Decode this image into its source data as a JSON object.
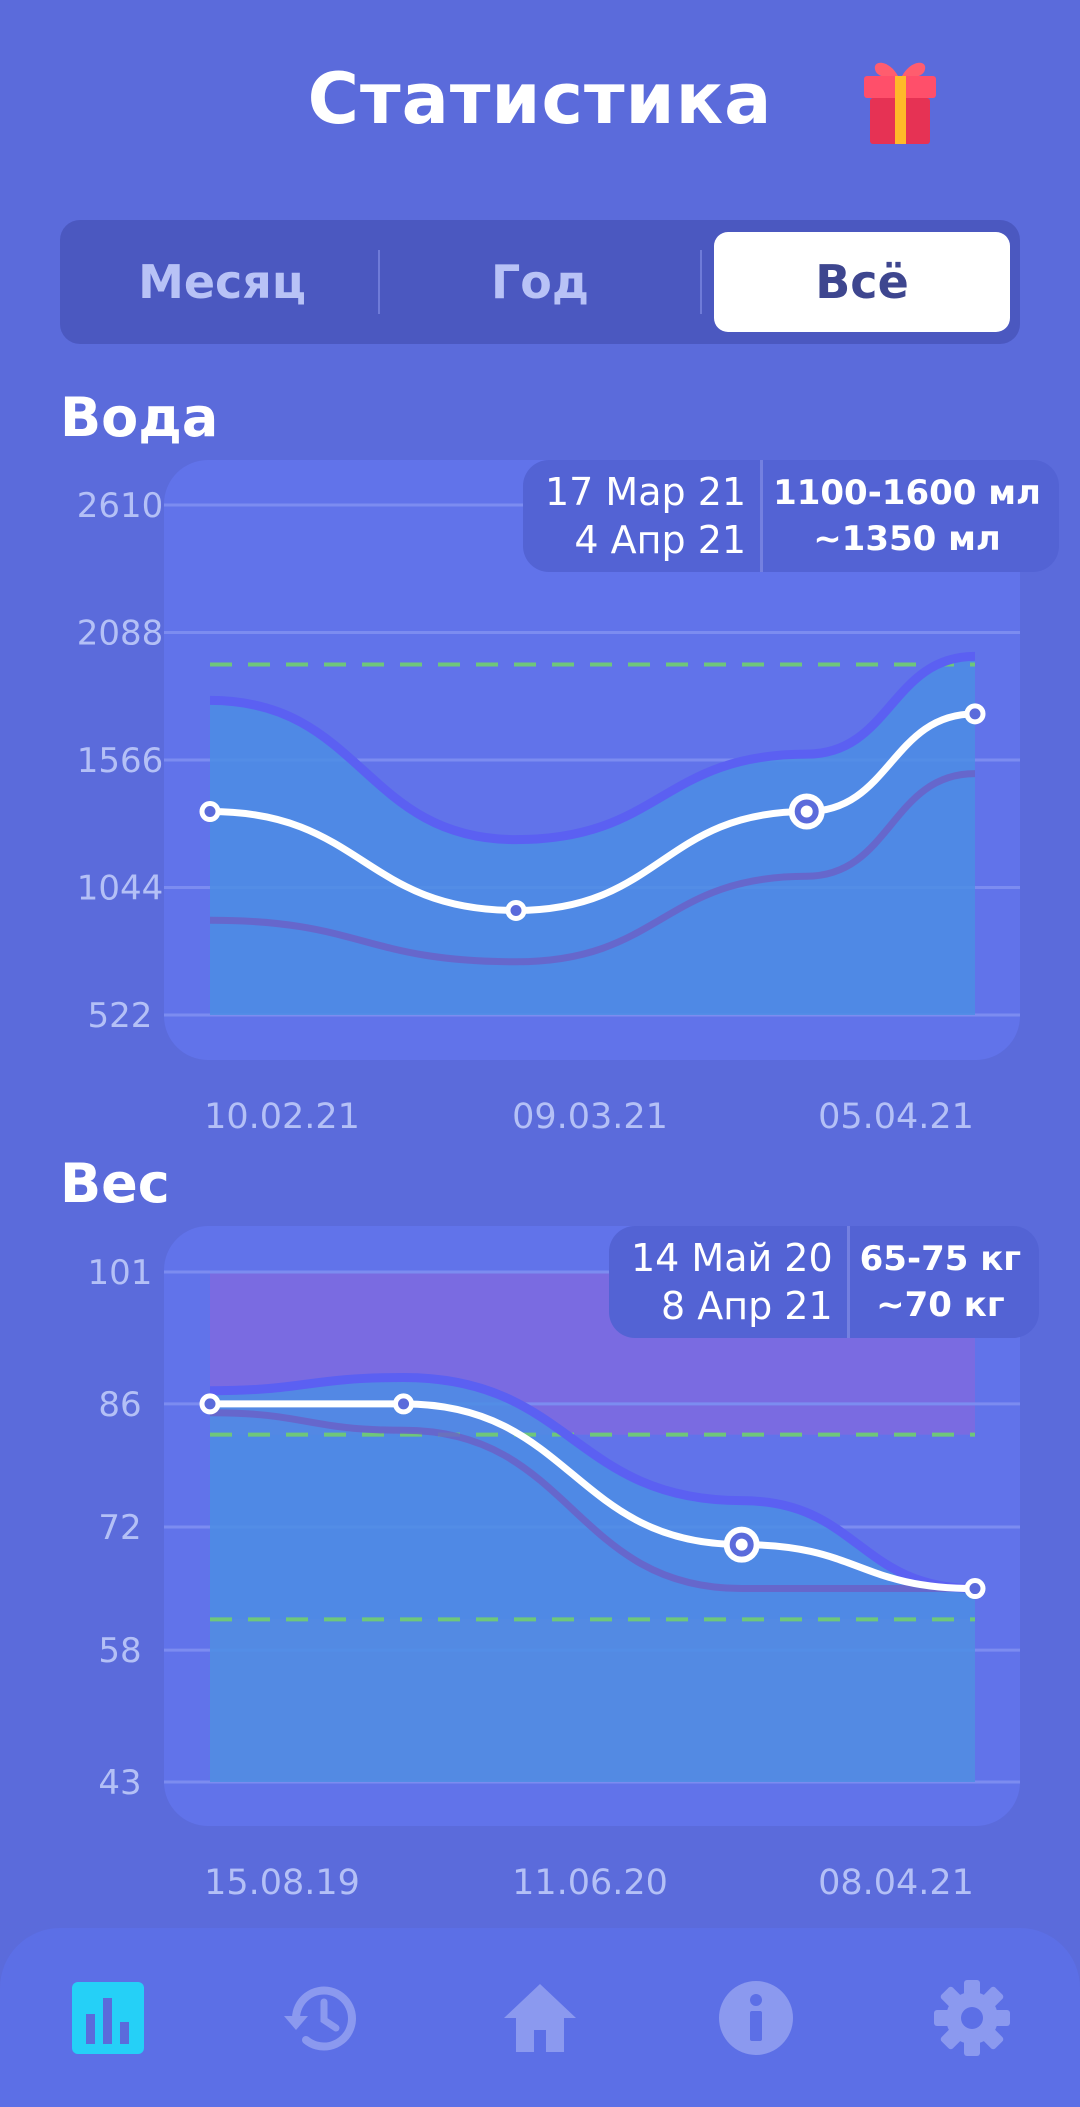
{
  "header": {
    "title": "Статистика",
    "gift_icon": "gift-icon"
  },
  "segments": {
    "month": "Месяц",
    "year": "Год",
    "all": "Всё",
    "selected": "all"
  },
  "colors": {
    "background": "#5b6bdb",
    "accent": "#25d0f7",
    "area": "#4c8de4",
    "line": "#ffffff",
    "target": "#6fc77a"
  },
  "water": {
    "title": "Вода",
    "tooltip": {
      "date_from": "17 Мар 21",
      "date_to": "4 Апр 21",
      "range": "1100-1600 мл",
      "avg": "~1350 мл"
    }
  },
  "weight": {
    "title": "Вес",
    "tooltip": {
      "date_from": "14 Май 20",
      "date_to": "8 Апр 21",
      "range": "65-75 кг",
      "avg": "~70 кг"
    }
  },
  "chart_data": [
    {
      "type": "area",
      "title": "Вода",
      "ylim": [
        522,
        2610
      ],
      "yticks": [
        2610,
        2088,
        1566,
        1044,
        522
      ],
      "ytick_labels": [
        "2610",
        "2088",
        "1566",
        "1044",
        "522"
      ],
      "xtick_labels": [
        "10.02.21",
        "09.03.21",
        "05.04.21"
      ],
      "target": 1957,
      "x": [
        0,
        0.4,
        0.78,
        1
      ],
      "series": [
        {
          "name": "max",
          "values": [
            1810,
            1240,
            1590,
            1990
          ]
        },
        {
          "name": "avg",
          "values": [
            1355,
            950,
            1355,
            1755
          ]
        },
        {
          "name": "min",
          "values": [
            910,
            740,
            1090,
            1510
          ]
        }
      ],
      "markers": [
        0,
        1,
        3
      ],
      "selected": 2
    },
    {
      "type": "area",
      "title": "Вес",
      "ylim": [
        43,
        101
      ],
      "yticks": [
        101,
        86,
        72,
        58,
        43
      ],
      "ytick_labels": [
        "101",
        "86",
        "72",
        "58",
        "43"
      ],
      "xtick_labels": [
        "15.08.19",
        "11.06.20",
        "08.04.21"
      ],
      "targets": [
        82.5,
        61.5
      ],
      "x": [
        0,
        0.253,
        0.695,
        1
      ],
      "series": [
        {
          "name": "max",
          "values": [
            87.5,
            89,
            75,
            65
          ]
        },
        {
          "name": "avg",
          "values": [
            86,
            86,
            70,
            65
          ]
        },
        {
          "name": "min",
          "values": [
            85,
            83,
            65,
            65
          ]
        }
      ],
      "markers": [
        0,
        1,
        3
      ],
      "selected": 2
    }
  ],
  "nav": {
    "items": [
      "stats-icon",
      "history-icon",
      "home-icon",
      "info-icon",
      "settings-icon"
    ],
    "active": "stats-icon"
  }
}
